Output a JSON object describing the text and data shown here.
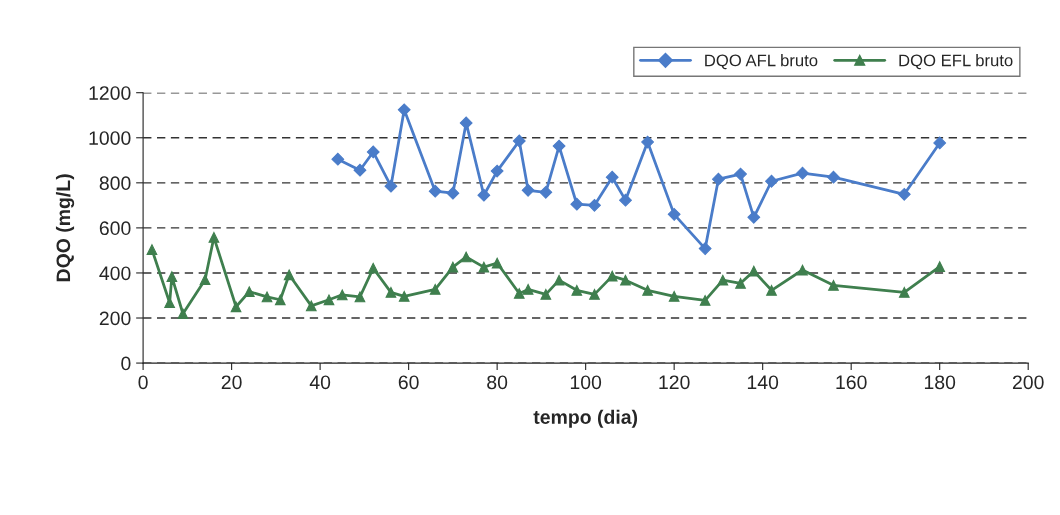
{
  "chart_data": {
    "type": "line",
    "xlabel": "tempo (dia)",
    "ylabel": "DQO (mg/L)",
    "xlim": [
      0,
      200
    ],
    "xticks": [
      0,
      20,
      40,
      60,
      80,
      100,
      120,
      140,
      160,
      180,
      200
    ],
    "ylim": [
      0,
      1200
    ],
    "yticks": [
      0,
      200,
      400,
      600,
      800,
      1000,
      1200
    ],
    "grid": "y",
    "legend": "top right",
    "series": [
      {
        "name": "DQO AFL bruto",
        "color": "#4a7cc9",
        "marker": "diamond",
        "x": [
          44,
          49,
          52,
          56,
          59,
          66,
          70,
          73,
          77,
          80,
          85,
          87,
          91,
          94,
          98,
          102,
          106,
          109,
          114,
          120,
          127,
          130,
          135,
          138,
          142,
          149,
          156,
          172,
          180
        ],
        "values": [
          905,
          856,
          937,
          785,
          1124,
          763,
          754,
          1066,
          745,
          852,
          986,
          767,
          758,
          963,
          705,
          700,
          825,
          723,
          981,
          660,
          508,
          816,
          839,
          647,
          807,
          843,
          825,
          749,
          977
        ]
      },
      {
        "name": "DQO EFL bruto",
        "color": "#3f7f4e",
        "marker": "triangle",
        "x": [
          2,
          6,
          6.5,
          9,
          14,
          16,
          21,
          24,
          28,
          31,
          33,
          38,
          42,
          45,
          49,
          52,
          56,
          59,
          66,
          70,
          73,
          77,
          80,
          85,
          87,
          91,
          94,
          98,
          102,
          106,
          109,
          114,
          120,
          127,
          131,
          135,
          138,
          142,
          149,
          156,
          172,
          180
        ],
        "values": [
          504,
          268,
          384,
          219,
          370,
          558,
          250,
          317,
          294,
          281,
          392,
          254,
          281,
          303,
          294,
          421,
          314,
          296,
          327,
          426,
          471,
          426,
          444,
          309,
          327,
          305,
          368,
          323,
          305,
          386,
          368,
          323,
          296,
          278,
          368,
          354,
          408,
          323,
          413,
          345,
          314,
          428
        ]
      }
    ]
  }
}
